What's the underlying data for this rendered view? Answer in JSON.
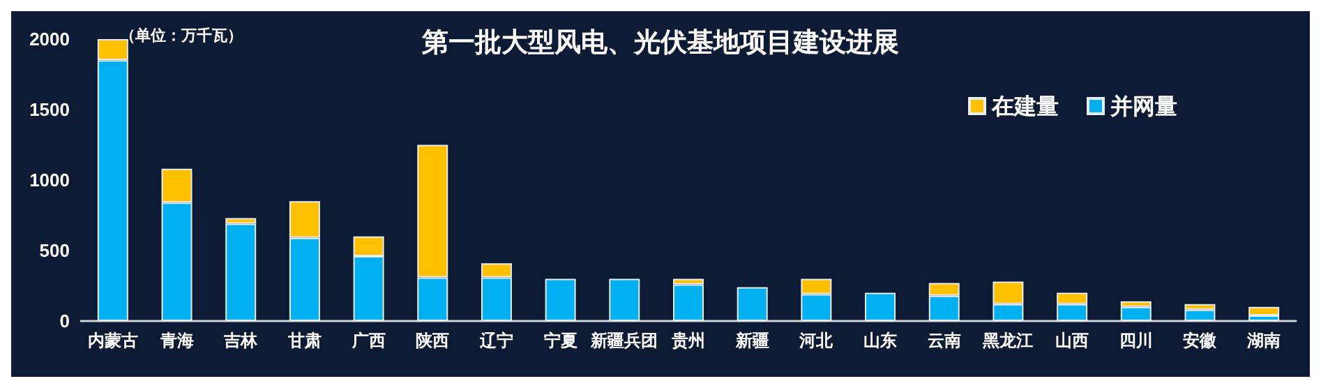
{
  "chart_data": {
    "type": "bar",
    "title": "第一批大型风电、光伏基地项目建设进展",
    "annotations": [
      "（单位：万千瓦）"
    ],
    "categories": [
      "内蒙古",
      "青海",
      "吉林",
      "甘肃",
      "广西",
      "陕西",
      "辽宁",
      "宁夏",
      "新疆兵团",
      "贵州",
      "新疆",
      "河北",
      "山东",
      "云南",
      "黑龙江",
      "山西",
      "四川",
      "安徽",
      "湖南"
    ],
    "stacked": true,
    "series": [
      {
        "name": "并网量",
        "color": "#00b0f0",
        "values": [
          1850,
          840,
          690,
          590,
          460,
          310,
          310,
          300,
          300,
          260,
          240,
          190,
          200,
          180,
          120,
          120,
          100,
          80,
          40
        ]
      },
      {
        "name": "在建量",
        "color": "#ffc000",
        "values": [
          150,
          240,
          40,
          260,
          140,
          940,
          100,
          null,
          null,
          40,
          null,
          110,
          null,
          90,
          160,
          80,
          40,
          40,
          60
        ]
      }
    ],
    "ylim": [
      0,
      2000
    ],
    "yticks": [
      0,
      500,
      1000,
      1500,
      2000
    ],
    "grid": false,
    "legend": "top right"
  }
}
